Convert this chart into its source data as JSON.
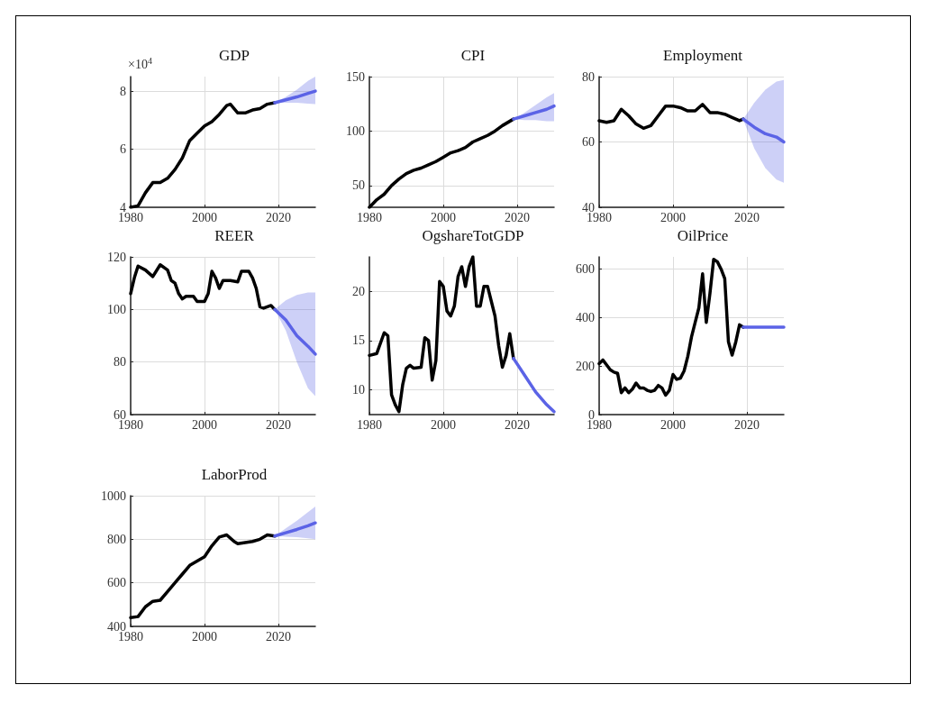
{
  "chart_data": [
    {
      "type": "line",
      "title": "GDP",
      "annotations": [
        "×10$^{4}$"
      ],
      "xlim": [
        1980,
        2030
      ],
      "xticks": [
        1980,
        2000,
        2020
      ],
      "ylim": [
        4,
        8.5
      ],
      "yticks": [
        4,
        6,
        8
      ],
      "grid": true,
      "series": [
        {
          "color": "#000000",
          "x": [
            1980,
            1982,
            1984,
            1986,
            1988,
            1990,
            1992,
            1994,
            1996,
            1998,
            2000,
            2002,
            2004,
            2006,
            2007,
            2009,
            2011,
            2013,
            2015,
            2017,
            2019
          ],
          "values": [
            4.0,
            4.05,
            4.5,
            4.85,
            4.85,
            5.0,
            5.3,
            5.7,
            6.3,
            6.55,
            6.8,
            6.95,
            7.2,
            7.5,
            7.55,
            7.25,
            7.25,
            7.35,
            7.4,
            7.55,
            7.6
          ]
        },
        {
          "color": "#5b63e6",
          "x": [
            2019,
            2022,
            2025,
            2028,
            2030
          ],
          "values": [
            7.6,
            7.7,
            7.8,
            7.92,
            8.0
          ],
          "lower": [
            7.6,
            7.6,
            7.6,
            7.57,
            7.55
          ],
          "upper": [
            7.6,
            7.8,
            8.05,
            8.35,
            8.5
          ]
        }
      ]
    },
    {
      "type": "line",
      "title": "CPI",
      "xlim": [
        1980,
        2030
      ],
      "xticks": [
        1980,
        2000,
        2020
      ],
      "ylim": [
        30,
        150
      ],
      "yticks": [
        50,
        100,
        150
      ],
      "grid": true,
      "series": [
        {
          "color": "#000000",
          "x": [
            1980,
            1982,
            1984,
            1986,
            1988,
            1990,
            1992,
            1994,
            1996,
            1998,
            2000,
            2002,
            2004,
            2006,
            2008,
            2010,
            2012,
            2014,
            2016,
            2019
          ],
          "values": [
            30,
            37,
            42,
            50,
            56,
            61,
            64,
            66,
            69,
            72,
            76,
            80,
            82,
            85,
            90,
            93,
            96,
            100,
            105,
            111
          ]
        },
        {
          "color": "#5b63e6",
          "x": [
            2019,
            2022,
            2025,
            2028,
            2030
          ],
          "values": [
            111,
            114,
            117,
            120,
            123
          ],
          "lower": [
            111,
            110,
            110,
            109,
            109
          ],
          "upper": [
            111,
            117,
            124,
            131,
            135
          ]
        }
      ]
    },
    {
      "type": "line",
      "title": "Employment",
      "xlim": [
        1980,
        2030
      ],
      "xticks": [
        1980,
        2000,
        2020
      ],
      "ylim": [
        40,
        80
      ],
      "yticks": [
        40,
        60,
        80
      ],
      "grid": true,
      "series": [
        {
          "color": "#000000",
          "x": [
            1980,
            1982,
            1984,
            1986,
            1988,
            1990,
            1992,
            1994,
            1996,
            1998,
            2000,
            2002,
            2004,
            2006,
            2008,
            2010,
            2012,
            2014,
            2016,
            2018,
            2019
          ],
          "values": [
            66.5,
            66,
            66.5,
            70,
            68,
            65.5,
            64.2,
            65,
            68,
            71,
            71,
            70.5,
            69.5,
            69.5,
            71.5,
            69,
            69,
            68.5,
            67.5,
            66.5,
            67
          ]
        },
        {
          "color": "#5b63e6",
          "x": [
            2019,
            2022,
            2025,
            2028,
            2030
          ],
          "values": [
            67,
            64.5,
            62.5,
            61.5,
            60
          ],
          "lower": [
            67,
            58,
            52,
            48.5,
            47.5
          ],
          "upper": [
            67,
            72,
            76,
            78.5,
            79
          ]
        }
      ]
    },
    {
      "type": "line",
      "title": "REER",
      "xlim": [
        1980,
        2030
      ],
      "xticks": [
        1980,
        2000,
        2020
      ],
      "ylim": [
        60,
        120
      ],
      "yticks": [
        60,
        80,
        100,
        120
      ],
      "grid": true,
      "series": [
        {
          "color": "#000000",
          "x": [
            1980,
            1981,
            1982,
            1984,
            1986,
            1988,
            1990,
            1991,
            1992,
            1993,
            1994,
            1995,
            1996,
            1997,
            1998,
            2000,
            2001,
            2002,
            2003,
            2004,
            2005,
            2007,
            2009,
            2010,
            2012,
            2013,
            2014,
            2015,
            2016,
            2018,
            2019
          ],
          "values": [
            106,
            112,
            116.5,
            115,
            112.5,
            117,
            115,
            111,
            110,
            106,
            104,
            105,
            105,
            105,
            103,
            103,
            106,
            114.5,
            112,
            108,
            111,
            111,
            110.5,
            114.5,
            114.5,
            112,
            108,
            101,
            100.5,
            101.5,
            100
          ]
        },
        {
          "color": "#5b63e6",
          "x": [
            2019,
            2022,
            2025,
            2028,
            2030
          ],
          "values": [
            100,
            96,
            90,
            86,
            83
          ],
          "lower": [
            100,
            92,
            80,
            70,
            67
          ],
          "upper": [
            100,
            103.5,
            105.5,
            106.5,
            106.5
          ]
        }
      ]
    },
    {
      "type": "line",
      "title": "OgshareTotGDP",
      "xlim": [
        1980,
        2030
      ],
      "xticks": [
        1980,
        2000,
        2020
      ],
      "ylim": [
        7.5,
        23.5
      ],
      "yticks": [
        10,
        15,
        20
      ],
      "grid": true,
      "series": [
        {
          "color": "#000000",
          "x": [
            1980,
            1982,
            1984,
            1985,
            1986,
            1987,
            1988,
            1989,
            1990,
            1991,
            1992,
            1994,
            1995,
            1996,
            1997,
            1998,
            1999,
            2000,
            2001,
            2002,
            2003,
            2004,
            2005,
            2006,
            2007,
            2008,
            2009,
            2010,
            2011,
            2012,
            2013,
            2014,
            2015,
            2016,
            2017,
            2018,
            2019
          ],
          "values": [
            13.5,
            13.7,
            15.8,
            15.5,
            9.5,
            8.5,
            7.8,
            10.5,
            12.2,
            12.5,
            12.2,
            12.3,
            15.3,
            15,
            11,
            13,
            21,
            20.5,
            18,
            17.5,
            18.5,
            21.5,
            22.5,
            20.5,
            22.5,
            23.5,
            18.5,
            18.5,
            20.5,
            20.5,
            19,
            17.5,
            14.5,
            12.3,
            13.5,
            15.7,
            13.2
          ]
        },
        {
          "color": "#5b63e6",
          "x": [
            2019,
            2022,
            2025,
            2028,
            2030
          ],
          "values": [
            13.2,
            11.5,
            9.8,
            8.5,
            7.8
          ]
        }
      ]
    },
    {
      "type": "line",
      "title": "OilPrice",
      "xlim": [
        1980,
        2030
      ],
      "xticks": [
        1980,
        2000,
        2020
      ],
      "ylim": [
        0,
        650
      ],
      "yticks": [
        0,
        200,
        400,
        600
      ],
      "grid": true,
      "series": [
        {
          "color": "#000000",
          "x": [
            1980,
            1981,
            1982,
            1983,
            1984,
            1985,
            1986,
            1987,
            1988,
            1989,
            1990,
            1991,
            1992,
            1993,
            1994,
            1995,
            1996,
            1997,
            1998,
            1999,
            2000,
            2001,
            2002,
            2003,
            2004,
            2005,
            2006,
            2007,
            2008,
            2009,
            2010,
            2011,
            2012,
            2013,
            2014,
            2015,
            2016,
            2017,
            2018,
            2019
          ],
          "values": [
            210,
            225,
            205,
            185,
            175,
            170,
            90,
            110,
            90,
            105,
            130,
            110,
            110,
            100,
            95,
            100,
            120,
            110,
            80,
            100,
            165,
            145,
            150,
            180,
            240,
            320,
            380,
            440,
            580,
            380,
            500,
            640,
            630,
            600,
            560,
            300,
            245,
            300,
            370,
            360
          ]
        },
        {
          "color": "#5b63e6",
          "x": [
            2019,
            2022,
            2025,
            2028,
            2030
          ],
          "values": [
            360,
            360,
            360,
            360,
            360
          ]
        }
      ]
    },
    {
      "type": "line",
      "title": "LaborProd",
      "xlim": [
        1980,
        2030
      ],
      "xticks": [
        1980,
        2000,
        2020
      ],
      "ylim": [
        400,
        1000
      ],
      "yticks": [
        400,
        600,
        800,
        1000
      ],
      "grid": true,
      "series": [
        {
          "color": "#000000",
          "x": [
            1980,
            1982,
            1984,
            1986,
            1988,
            1990,
            1992,
            1994,
            1996,
            1998,
            2000,
            2002,
            2004,
            2006,
            2008,
            2009,
            2011,
            2013,
            2015,
            2017,
            2019
          ],
          "values": [
            440,
            445,
            490,
            515,
            520,
            560,
            600,
            640,
            680,
            700,
            720,
            770,
            810,
            820,
            790,
            780,
            785,
            790,
            800,
            820,
            815
          ]
        },
        {
          "color": "#5b63e6",
          "x": [
            2019,
            2022,
            2025,
            2028,
            2030
          ],
          "values": [
            815,
            830,
            845,
            862,
            875
          ],
          "lower": [
            815,
            812,
            810,
            805,
            800
          ],
          "upper": [
            815,
            850,
            885,
            925,
            950
          ]
        }
      ]
    }
  ]
}
